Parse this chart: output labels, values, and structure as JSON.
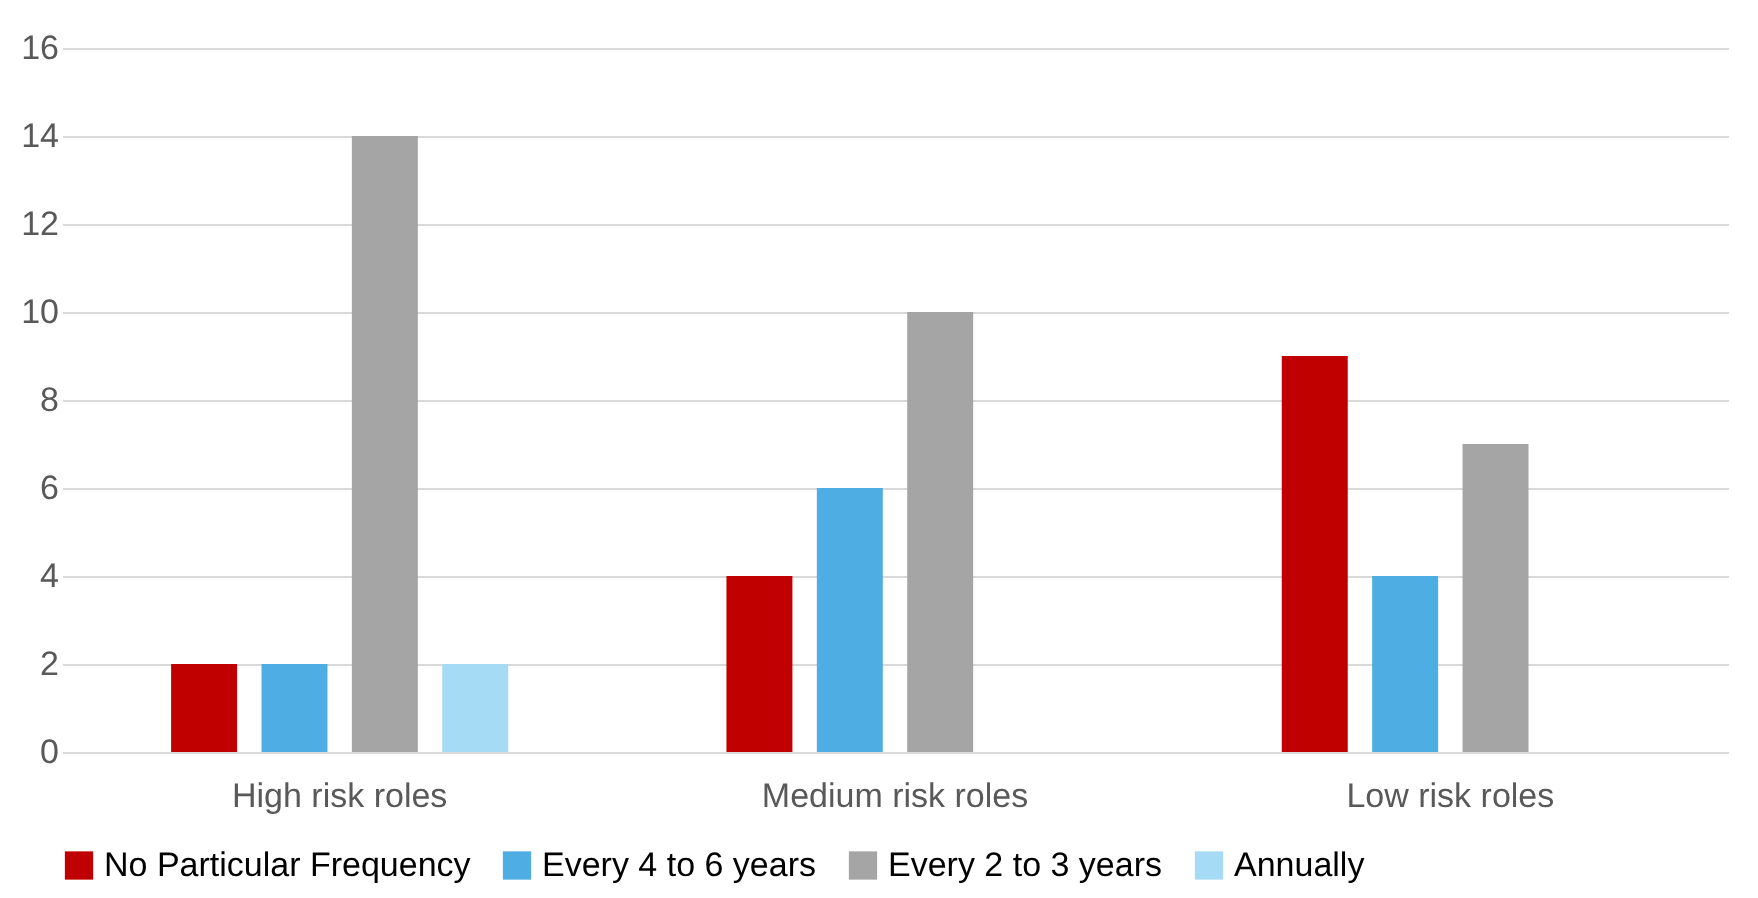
{
  "chart_data": {
    "type": "bar",
    "categories": [
      "High risk roles",
      "Medium risk roles",
      "Low risk roles"
    ],
    "series": [
      {
        "name": "No Particular Frequency",
        "color": "#c00000",
        "values": [
          2,
          4,
          9
        ]
      },
      {
        "name": "Every 4 to 6 years",
        "color": "#4eade2",
        "values": [
          2,
          6,
          4
        ]
      },
      {
        "name": "Every 2 to 3 years",
        "color": "#a5a5a5",
        "values": [
          14,
          10,
          7
        ]
      },
      {
        "name": "Annually",
        "color": "#a6dbf6",
        "values": [
          2,
          null,
          null
        ]
      }
    ],
    "ylim": [
      0,
      16
    ],
    "yticks": [
      0,
      2,
      4,
      6,
      8,
      10,
      12,
      14,
      16
    ],
    "grid": "y",
    "legend": "bottom"
  }
}
